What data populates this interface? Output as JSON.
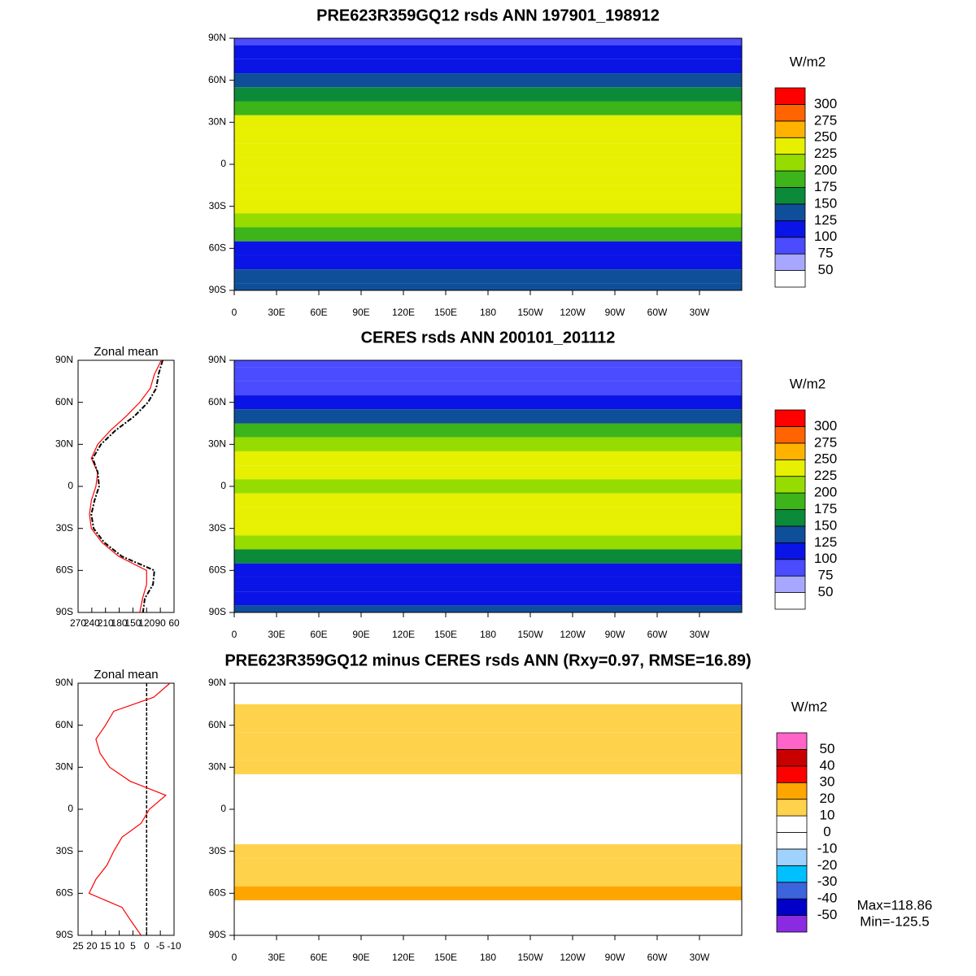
{
  "chart_data": [
    {
      "type": "map",
      "title": "PRE623R359GQ12 rsds ANN 197901_198912",
      "lat": [
        90,
        80,
        70,
        60,
        50,
        40,
        30,
        20,
        10,
        0,
        -10,
        -20,
        -30,
        -40,
        -50,
        -60,
        -70,
        -80,
        -90
      ],
      "values": [
        88,
        103,
        112,
        135,
        165,
        199,
        227,
        241,
        227,
        231,
        241,
        245,
        241,
        218,
        181,
        120,
        120,
        129,
        135
      ],
      "xlim": [
        0,
        360
      ],
      "ylim": [
        -90,
        90
      ],
      "xticks": [
        0,
        {
          "value": 30,
          "label": "30E"
        },
        {
          "value": 60,
          "label": "60E"
        },
        {
          "value": 90,
          "label": "90E"
        },
        {
          "value": 120,
          "label": "120E"
        },
        {
          "value": 150,
          "label": "150E"
        },
        180,
        {
          "value": 210,
          "label": "150W"
        },
        {
          "value": 240,
          "label": "120W"
        },
        {
          "value": 270,
          "label": "90W"
        },
        {
          "value": 300,
          "label": "60W"
        },
        {
          "value": 330,
          "label": "30W"
        }
      ],
      "yticks": [
        {
          "value": 90,
          "label": "90N"
        },
        {
          "value": 60,
          "label": "60N"
        },
        {
          "value": 30,
          "label": "30N"
        },
        0,
        {
          "value": -30,
          "label": "30S"
        },
        {
          "value": -60,
          "label": "60S"
        },
        {
          "value": -90,
          "label": "90S"
        }
      ],
      "colorbar": {
        "label": "W/m2",
        "levels": [
          50,
          75,
          100,
          125,
          150,
          175,
          200,
          225,
          250,
          275,
          300
        ],
        "colors": [
          "#ffffff",
          "#a7a7ff",
          "#4b4bff",
          "#0a14e6",
          "#0f4f9a",
          "#0b8a3a",
          "#3cb41a",
          "#96dc00",
          "#e6f000",
          "#ffb300",
          "#ff6400",
          "#ff0000"
        ]
      }
    },
    {
      "type": "map",
      "title": "CERES rsds ANN 200101_201112",
      "lat": [
        90,
        80,
        70,
        60,
        50,
        40,
        30,
        20,
        10,
        0,
        -10,
        -20,
        -30,
        -40,
        -50,
        -60,
        -70,
        -80,
        -90
      ],
      "values": [
        85,
        94,
        99,
        117,
        147,
        188,
        220,
        238,
        227,
        224,
        234,
        241,
        236,
        213,
        174,
        103,
        106,
        124,
        128
      ],
      "xlim": [
        0,
        360
      ],
      "ylim": [
        -90,
        90
      ],
      "xticks": [
        0,
        {
          "value": 30,
          "label": "30E"
        },
        {
          "value": 60,
          "label": "60E"
        },
        {
          "value": 90,
          "label": "90E"
        },
        {
          "value": 120,
          "label": "120E"
        },
        {
          "value": 150,
          "label": "150E"
        },
        180,
        {
          "value": 210,
          "label": "150W"
        },
        {
          "value": 240,
          "label": "120W"
        },
        {
          "value": 270,
          "label": "90W"
        },
        {
          "value": 300,
          "label": "60W"
        },
        {
          "value": 330,
          "label": "30W"
        }
      ],
      "yticks": [
        {
          "value": 90,
          "label": "90N"
        },
        {
          "value": 60,
          "label": "60N"
        },
        {
          "value": 30,
          "label": "30N"
        },
        0,
        {
          "value": -30,
          "label": "30S"
        },
        {
          "value": -60,
          "label": "60S"
        },
        {
          "value": -90,
          "label": "90S"
        }
      ],
      "colorbar": {
        "label": "W/m2",
        "levels": [
          50,
          75,
          100,
          125,
          150,
          175,
          200,
          225,
          250,
          275,
          300
        ],
        "colors": [
          "#ffffff",
          "#a7a7ff",
          "#4b4bff",
          "#0a14e6",
          "#0f4f9a",
          "#0b8a3a",
          "#3cb41a",
          "#96dc00",
          "#e6f000",
          "#ffb300",
          "#ff6400",
          "#ff0000"
        ]
      }
    },
    {
      "type": "map",
      "title": "PRE623R359GQ12 minus CERES rsds ANN (Rxy=0.97, RMSE=16.89)",
      "lat": [
        90,
        80,
        70,
        60,
        50,
        40,
        30,
        20,
        10,
        0,
        -10,
        -20,
        -30,
        -40,
        -50,
        -60,
        -70,
        -80,
        -90
      ],
      "values": [
        -8.5,
        -2.6,
        12,
        15,
        18.5,
        17,
        13.5,
        6,
        -7,
        -1,
        2,
        9,
        12,
        14.5,
        18.5,
        21,
        9,
        5.6,
        2
      ],
      "xlim": [
        0,
        360
      ],
      "ylim": [
        -90,
        90
      ],
      "xticks": [
        0,
        {
          "value": 30,
          "label": "30E"
        },
        {
          "value": 60,
          "label": "60E"
        },
        {
          "value": 90,
          "label": "90E"
        },
        {
          "value": 120,
          "label": "120E"
        },
        {
          "value": 150,
          "label": "150E"
        },
        180,
        {
          "value": 210,
          "label": "150W"
        },
        {
          "value": 240,
          "label": "120W"
        },
        {
          "value": 270,
          "label": "90W"
        },
        {
          "value": 300,
          "label": "60W"
        },
        {
          "value": 330,
          "label": "30W"
        }
      ],
      "yticks": [
        {
          "value": 90,
          "label": "90N"
        },
        {
          "value": 60,
          "label": "60N"
        },
        {
          "value": 30,
          "label": "30N"
        },
        0,
        {
          "value": -30,
          "label": "30S"
        },
        {
          "value": -60,
          "label": "60S"
        },
        {
          "value": -90,
          "label": "90S"
        }
      ],
      "colorbar": {
        "label": "W/m2",
        "levels": [
          -50,
          -40,
          -30,
          -20,
          -10,
          0,
          10,
          20,
          30,
          40,
          50
        ],
        "colors": [
          "#8a2be2",
          "#0000c8",
          "#3c64dc",
          "#00c0ff",
          "#a0d2ff",
          "#ffffff",
          "#ffffff",
          "#ffd24b",
          "#ffa500",
          "#ff0000",
          "#c80000",
          "#ff64c8"
        ]
      },
      "annotations": [
        "Max=118.86",
        "Min=-125.5"
      ]
    },
    {
      "type": "zonal",
      "title": "Zonal mean",
      "lat": [
        90,
        80,
        70,
        60,
        50,
        40,
        30,
        20,
        10,
        0,
        -10,
        -20,
        -30,
        -40,
        -50,
        -60,
        -70,
        -80,
        -90
      ],
      "series": [
        {
          "color": "#ff0000",
          "values": [
            88,
            103,
            112,
            135,
            165,
            199,
            227,
            241,
            227,
            231,
            241,
            245,
            241,
            218,
            181,
            120,
            120,
            129,
            135
          ]
        },
        {
          "color": "#000000",
          "dashed": true,
          "values": [
            85,
            94,
            99,
            117,
            147,
            188,
            220,
            238,
            227,
            224,
            234,
            241,
            236,
            213,
            174,
            103,
            106,
            124,
            128
          ]
        }
      ],
      "xlim": [
        270,
        60
      ],
      "ylim": [
        -90,
        90
      ],
      "xticks": [
        270,
        240,
        210,
        180,
        150,
        120,
        90,
        60
      ],
      "yticks": [
        {
          "value": 90,
          "label": "90N"
        },
        {
          "value": 60,
          "label": "60N"
        },
        {
          "value": 30,
          "label": "30N"
        },
        0,
        {
          "value": -30,
          "label": "30S"
        },
        {
          "value": -60,
          "label": "60S"
        },
        {
          "value": -90,
          "label": "90S"
        }
      ]
    },
    {
      "type": "zonal",
      "title": "Zonal mean",
      "lat": [
        90,
        80,
        70,
        60,
        50,
        40,
        30,
        20,
        10,
        0,
        -10,
        -20,
        -30,
        -40,
        -50,
        -60,
        -70,
        -80,
        -90
      ],
      "series": [
        {
          "color": "#ff0000",
          "values": [
            -8.5,
            -2.6,
            12,
            15,
            18.5,
            17,
            13.5,
            6,
            -7,
            -1,
            2,
            9,
            12,
            14.5,
            18.5,
            21,
            9,
            5.6,
            2
          ]
        }
      ],
      "reference_line": 0,
      "xlim": [
        25,
        -10
      ],
      "ylim": [
        -90,
        90
      ],
      "xticks": [
        25,
        20,
        15,
        10,
        5,
        0,
        -5,
        -10
      ],
      "yticks": [
        {
          "value": 90,
          "label": "90N"
        },
        {
          "value": 60,
          "label": "60N"
        },
        {
          "value": 30,
          "label": "30N"
        },
        0,
        {
          "value": -30,
          "label": "30S"
        },
        {
          "value": -60,
          "label": "60S"
        },
        {
          "value": -90,
          "label": "90S"
        }
      ]
    }
  ]
}
